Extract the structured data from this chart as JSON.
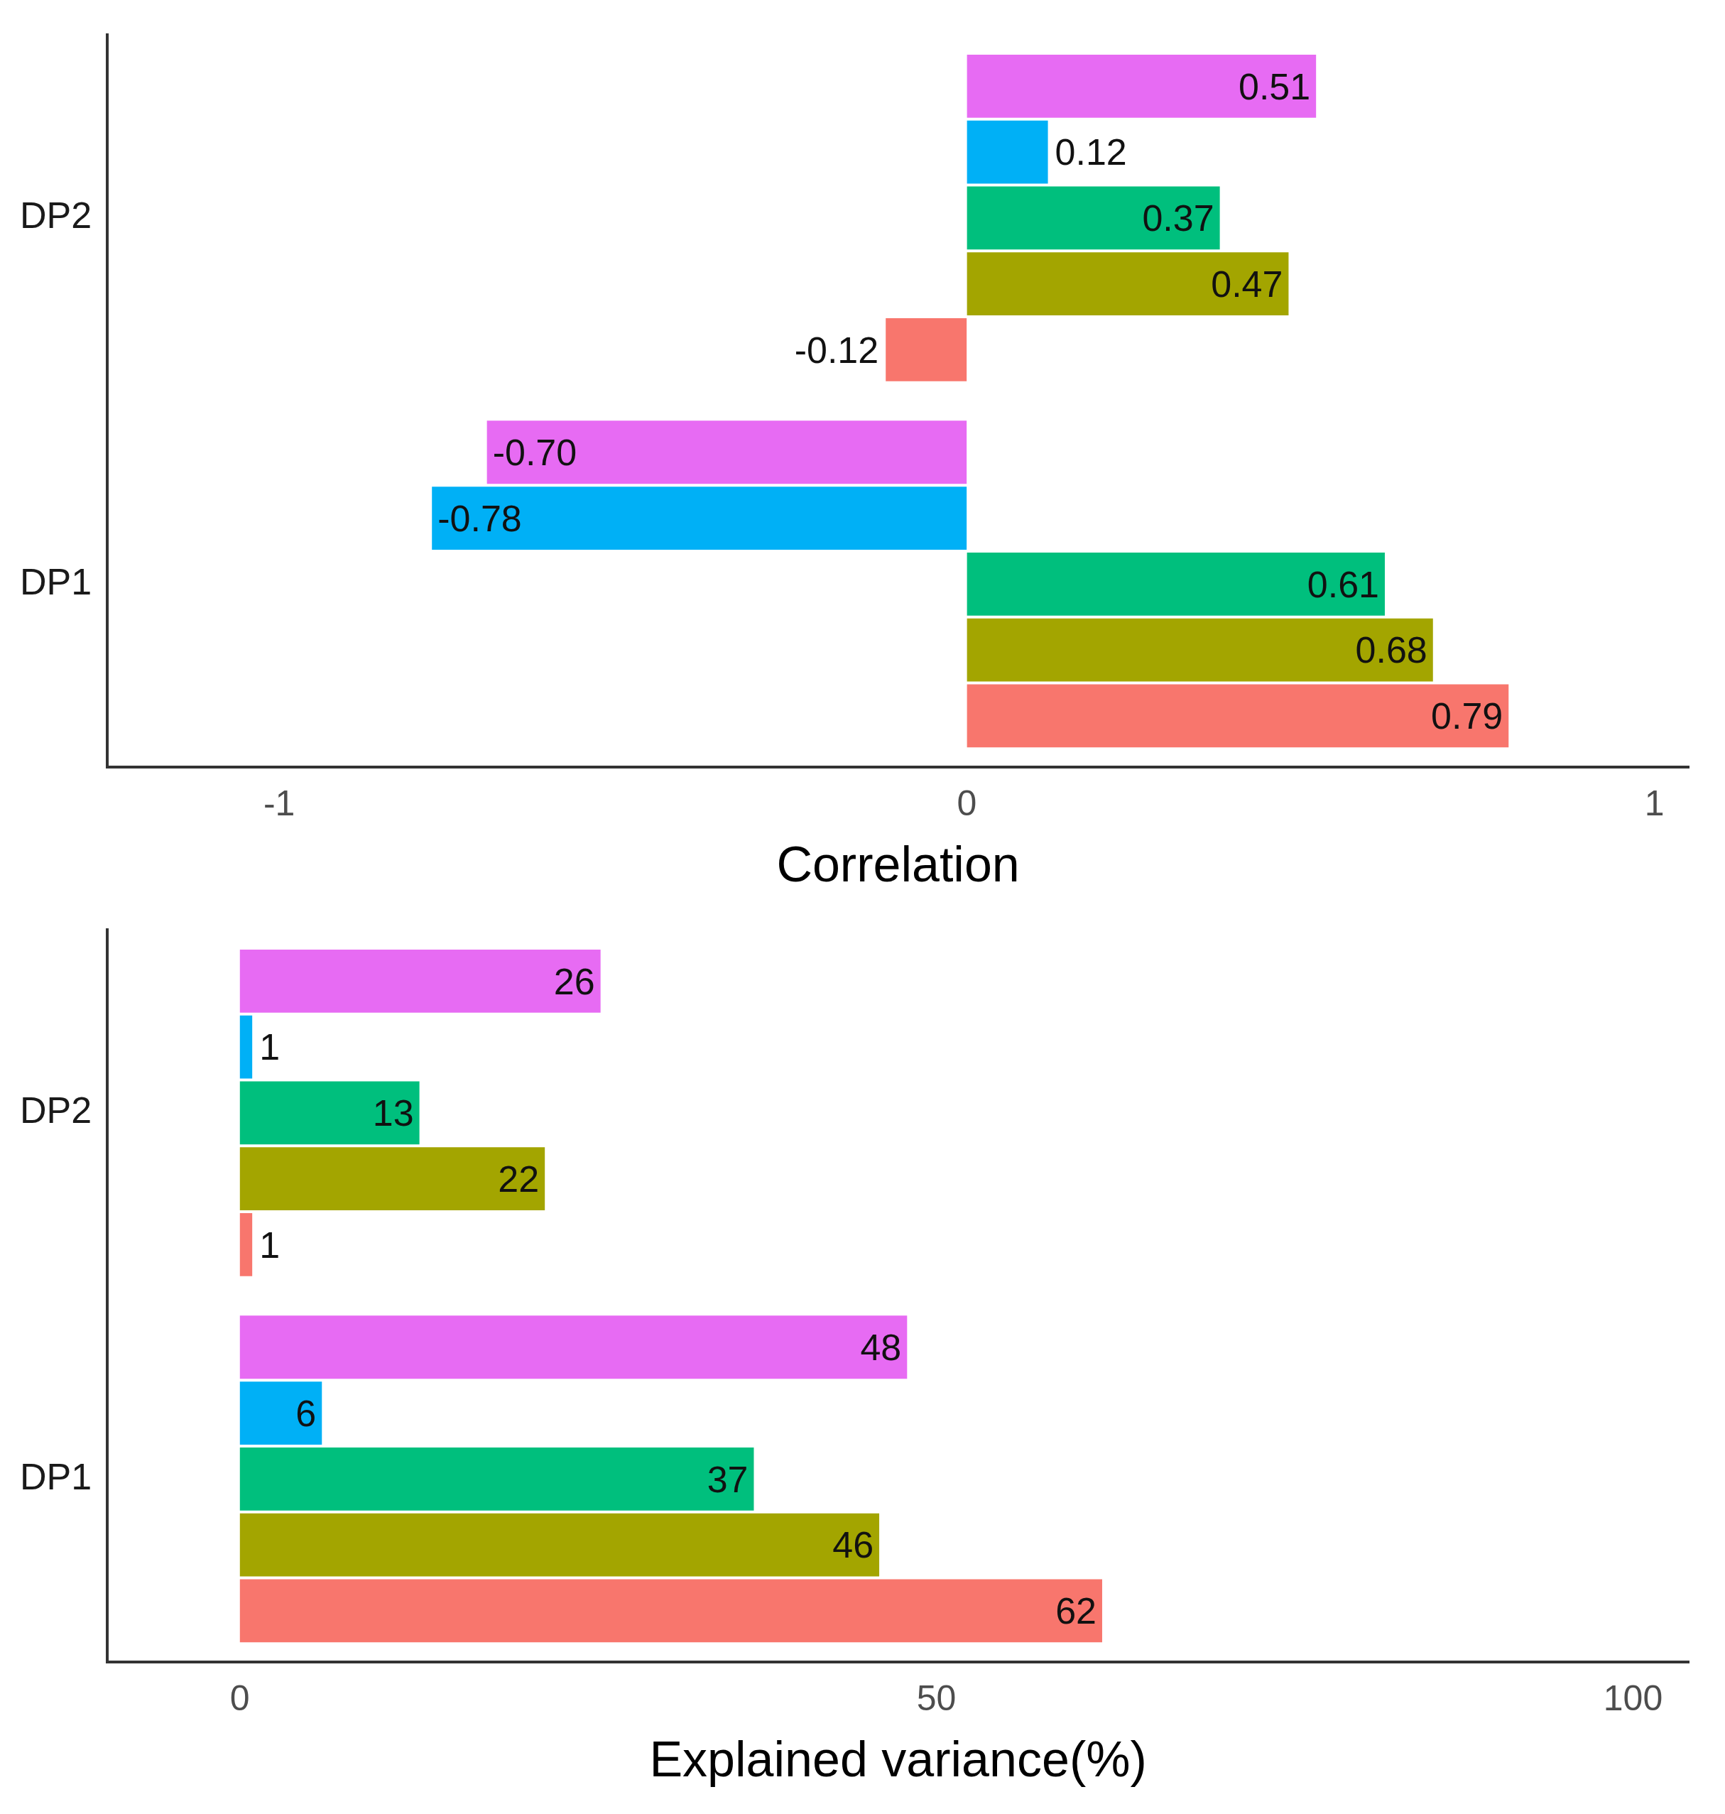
{
  "chart_data": [
    {
      "type": "bar",
      "orientation": "horizontal",
      "xlabel": "Correlation",
      "categories": [
        "DP2",
        "DP1"
      ],
      "xlim": [
        -1.25,
        1.05
      ],
      "xticks": [
        -1,
        0,
        1
      ],
      "grid": false,
      "legend": false,
      "series": [
        {
          "color": "#e76bf3",
          "values": [
            0.51,
            -0.7
          ],
          "value_labels": [
            "0.51",
            "-0.70"
          ]
        },
        {
          "color": "#00b0f6",
          "values": [
            0.12,
            -0.78
          ],
          "value_labels": [
            "0.12",
            "-0.78"
          ]
        },
        {
          "color": "#00bf7d",
          "values": [
            0.37,
            0.61
          ],
          "value_labels": [
            "0.37",
            "0.61"
          ]
        },
        {
          "color": "#a3a500",
          "values": [
            0.47,
            0.68
          ],
          "value_labels": [
            "0.47",
            "0.68"
          ]
        },
        {
          "color": "#f8766d",
          "values": [
            -0.12,
            0.79
          ],
          "value_labels": [
            "-0.12",
            "0.79"
          ]
        }
      ]
    },
    {
      "type": "bar",
      "orientation": "horizontal",
      "xlabel": "Explained variance(%)",
      "categories": [
        "DP2",
        "DP1"
      ],
      "xlim": [
        -9.5,
        104
      ],
      "xticks": [
        0,
        50,
        100
      ],
      "grid": false,
      "legend": false,
      "data_labels": true,
      "series": [
        {
          "color": "#e76bf3",
          "values": [
            26,
            48
          ]
        },
        {
          "color": "#00b0f6",
          "values": [
            1,
            6
          ]
        },
        {
          "color": "#00bf7d",
          "values": [
            13,
            37
          ]
        },
        {
          "color": "#a3a500",
          "values": [
            22,
            46
          ]
        },
        {
          "color": "#f8766d",
          "values": [
            1,
            62
          ]
        }
      ]
    }
  ]
}
